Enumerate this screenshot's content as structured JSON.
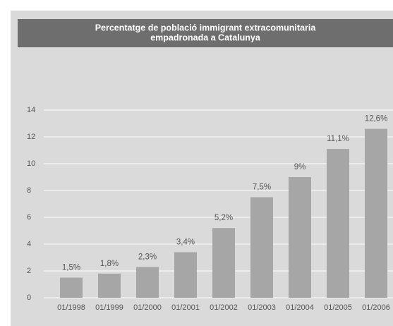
{
  "chart_data": {
    "type": "bar",
    "title": [
      "Percentatge de població immigrant extracomunitaria",
      "empadronada a Catalunya"
    ],
    "categories": [
      "01/1998",
      "01/1999",
      "01/2000",
      "01/2001",
      "01/2002",
      "01/2003",
      "01/2004",
      "01/2005",
      "01/2006"
    ],
    "values": [
      1.5,
      1.8,
      2.3,
      3.4,
      5.2,
      7.5,
      9,
      11.1,
      12.6
    ],
    "value_labels": [
      "1,5%",
      "1,8%",
      "2,3%",
      "3,4%",
      "5,2%",
      "7,5%",
      "9%",
      "11,1%",
      "12,6%"
    ],
    "color": "#a6a6a6",
    "ylim": [
      0,
      14
    ],
    "yticks": [
      0,
      2,
      4,
      6,
      8,
      10,
      12,
      14
    ],
    "grid": true
  }
}
